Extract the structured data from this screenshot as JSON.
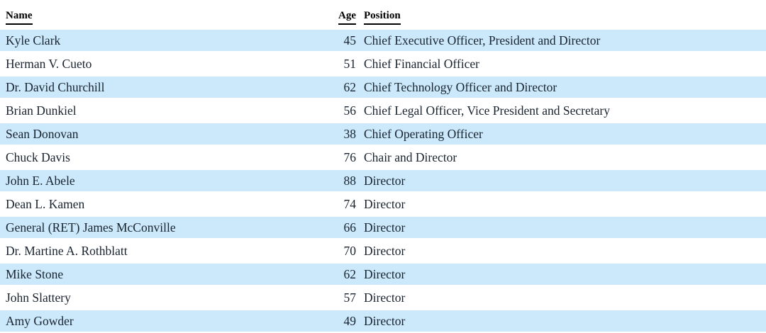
{
  "colors": {
    "row_highlight": "#cbe9fb",
    "row_plain": "#ffffff",
    "text": "#19232f",
    "header_text": "#000000"
  },
  "table": {
    "columns": [
      {
        "key": "name",
        "label": "Name"
      },
      {
        "key": "age",
        "label": "Age"
      },
      {
        "key": "position",
        "label": "Position"
      }
    ],
    "rows": [
      {
        "name": "Kyle Clark",
        "age": "45",
        "position": "Chief Executive Officer, President and Director"
      },
      {
        "name": "Herman V. Cueto",
        "age": "51",
        "position": "Chief Financial Officer"
      },
      {
        "name": "Dr. David Churchill",
        "age": "62",
        "position": "Chief Technology Officer and Director"
      },
      {
        "name": "Brian Dunkiel",
        "age": "56",
        "position": "Chief Legal Officer, Vice President and Secretary"
      },
      {
        "name": "Sean Donovan",
        "age": "38",
        "position": "Chief Operating Officer"
      },
      {
        "name": "Chuck Davis",
        "age": "76",
        "position": "Chair and Director"
      },
      {
        "name": "John E. Abele",
        "age": "88",
        "position": "Director"
      },
      {
        "name": "Dean L. Kamen",
        "age": "74",
        "position": "Director"
      },
      {
        "name": "General (RET) James McConville",
        "age": "66",
        "position": "Director"
      },
      {
        "name": "Dr. Martine A. Rothblatt",
        "age": "70",
        "position": "Director"
      },
      {
        "name": "Mike Stone",
        "age": "62",
        "position": "Director"
      },
      {
        "name": "John Slattery",
        "age": "57",
        "position": "Director"
      },
      {
        "name": "Amy Gowder",
        "age": "49",
        "position": "Director"
      }
    ]
  }
}
